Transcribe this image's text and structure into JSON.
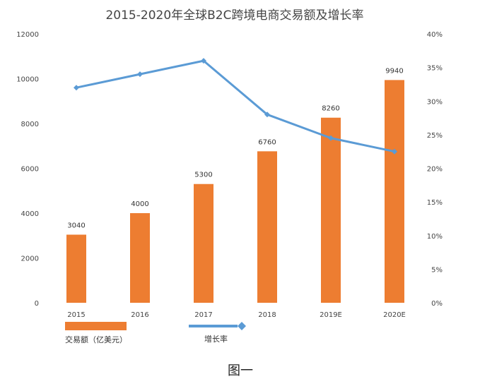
{
  "caption": "图一",
  "chart_data": {
    "type": "bar",
    "title": "2015-2020年全球B2C跨境电商交易额及增长率",
    "xlabel": "",
    "ylabel": "",
    "categories": [
      "2015",
      "2016",
      "2017",
      "2018",
      "2019E",
      "2020E"
    ],
    "series": [
      {
        "name": "交易额（亿美元）",
        "type": "bar",
        "axis": "left",
        "values": [
          3040,
          4000,
          5300,
          6760,
          8260,
          9940
        ],
        "color": "#ED7D31",
        "data_labels": [
          "3040",
          "4000",
          "5300",
          "6760",
          "8260",
          "9940"
        ]
      },
      {
        "name": "增长率",
        "type": "line",
        "axis": "right",
        "values": [
          32,
          34,
          36,
          28,
          24.5,
          22.5
        ],
        "color": "#5B9BD5"
      }
    ],
    "y_left": {
      "ylim": [
        0,
        12000
      ],
      "ticks": [
        "0",
        "2000",
        "4000",
        "6000",
        "8000",
        "10000",
        "12000"
      ]
    },
    "y_right": {
      "ylim": [
        0,
        40
      ],
      "ticks": [
        "0%",
        "5%",
        "10%",
        "15%",
        "20%",
        "25%",
        "30%",
        "35%",
        "40%"
      ]
    },
    "grid": false,
    "legend_position": "bottom-left"
  }
}
